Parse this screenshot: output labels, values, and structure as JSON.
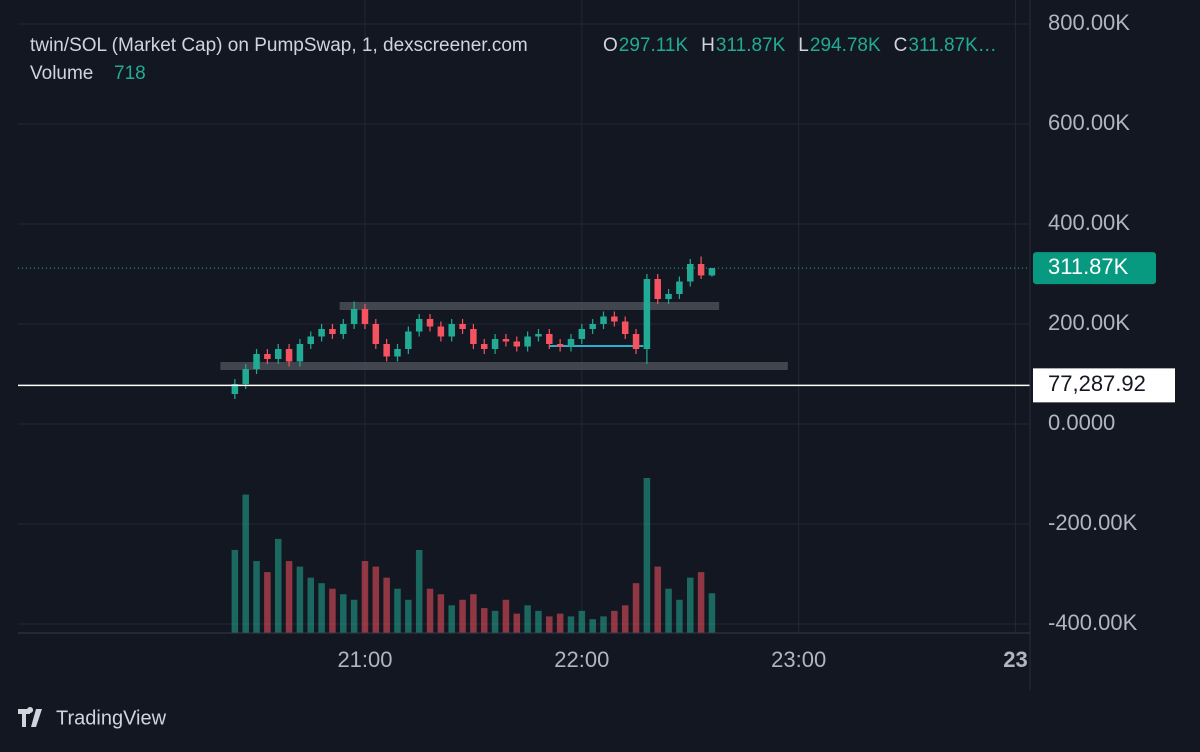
{
  "header": {
    "title": "twin/SOL (Market Cap) on PumpSwap, 1, dexscreener.com",
    "ohlc": [
      {
        "key": "O",
        "text": "297.11K"
      },
      {
        "key": "H",
        "text": "311.87K"
      },
      {
        "key": "L",
        "text": "294.78K"
      },
      {
        "key": "C",
        "text": "311.87K…"
      }
    ],
    "volume_label": "Volume"
  },
  "chart_data": {
    "type": "candlestick",
    "x": [
      "20:24",
      "20:27",
      "20:30",
      "20:33",
      "20:36",
      "20:39",
      "20:42",
      "20:45",
      "20:48",
      "20:51",
      "20:54",
      "20:57",
      "21:00",
      "21:03",
      "21:06",
      "21:09",
      "21:12",
      "21:15",
      "21:18",
      "21:21",
      "21:24",
      "21:27",
      "21:30",
      "21:33",
      "21:36",
      "21:39",
      "21:42",
      "21:45",
      "21:48",
      "21:51",
      "21:54",
      "21:57",
      "22:00",
      "22:03",
      "22:06",
      "22:09",
      "22:12",
      "22:15",
      "22:18",
      "22:21",
      "22:24",
      "22:27",
      "22:30",
      "22:33",
      "22:36"
    ],
    "open": [
      60000,
      80000,
      110000,
      140000,
      130000,
      150000,
      125000,
      160000,
      175000,
      190000,
      180000,
      200000,
      230000,
      200000,
      160000,
      135000,
      150000,
      185000,
      210000,
      195000,
      175000,
      200000,
      190000,
      160000,
      150000,
      170000,
      165000,
      155000,
      175000,
      180000,
      160000,
      155000,
      170000,
      190000,
      200000,
      215000,
      205000,
      180000,
      150000,
      290000,
      250000,
      260000,
      285000,
      320000,
      297110
    ],
    "high": [
      90000,
      120000,
      150000,
      150000,
      160000,
      160000,
      170000,
      185000,
      200000,
      200000,
      210000,
      245000,
      240000,
      210000,
      170000,
      160000,
      195000,
      220000,
      220000,
      205000,
      210000,
      210000,
      200000,
      170000,
      180000,
      180000,
      175000,
      185000,
      190000,
      190000,
      170000,
      180000,
      200000,
      210000,
      225000,
      225000,
      215000,
      190000,
      300000,
      300000,
      270000,
      295000,
      330000,
      335000,
      311870
    ],
    "low": [
      50000,
      70000,
      100000,
      120000,
      120000,
      115000,
      115000,
      150000,
      165000,
      170000,
      170000,
      190000,
      190000,
      150000,
      125000,
      125000,
      140000,
      175000,
      185000,
      165000,
      165000,
      180000,
      150000,
      140000,
      140000,
      155000,
      145000,
      145000,
      165000,
      150000,
      145000,
      145000,
      160000,
      180000,
      190000,
      195000,
      170000,
      140000,
      120000,
      240000,
      240000,
      250000,
      275000,
      290000,
      294780
    ],
    "close": [
      80000,
      110000,
      140000,
      130000,
      150000,
      125000,
      160000,
      175000,
      190000,
      180000,
      200000,
      230000,
      200000,
      160000,
      135000,
      150000,
      185000,
      210000,
      195000,
      175000,
      200000,
      190000,
      160000,
      150000,
      170000,
      165000,
      155000,
      175000,
      180000,
      160000,
      155000,
      170000,
      190000,
      200000,
      215000,
      205000,
      180000,
      150000,
      290000,
      250000,
      260000,
      285000,
      320000,
      297110,
      311870
    ],
    "volume": [
      1500,
      2500,
      1300,
      1100,
      1700,
      1300,
      1200,
      1000,
      900,
      800,
      700,
      600,
      1300,
      1200,
      1000,
      800,
      600,
      1500,
      800,
      700,
      500,
      600,
      700,
      450,
      400,
      600,
      350,
      500,
      400,
      300,
      350,
      300,
      400,
      250,
      300,
      400,
      500,
      900,
      2800,
      1200,
      800,
      600,
      1000,
      1100,
      718
    ],
    "up_color": "#22ab94",
    "down_color": "#f7525f",
    "xlim": [
      "19:24",
      "24:04"
    ],
    "xticks": [
      {
        "value": "21:00",
        "label": "21:00"
      },
      {
        "value": "22:00",
        "label": "22:00"
      },
      {
        "value": "23:00",
        "label": "23:00"
      },
      {
        "value": "24:00",
        "label": "23"
      }
    ],
    "ylim": [
      -418000,
      848000
    ],
    "yticks": [
      {
        "value": -400000,
        "label": "-400.00K"
      },
      {
        "value": -200000,
        "label": "-200.00K"
      },
      {
        "value": 0,
        "label": "0.0000"
      },
      {
        "value": 200000,
        "label": "200.00K"
      },
      {
        "value": 400000,
        "label": "400.00K"
      },
      {
        "value": 600000,
        "label": "600.00K"
      },
      {
        "value": 800000,
        "label": "800.00K"
      }
    ],
    "grid": true,
    "last_price": {
      "value": 311870,
      "label": "311.87K"
    },
    "crosshair": {
      "value": 77287.92,
      "label": "77,287.92"
    },
    "zones": [
      {
        "level": 236000,
        "start": "20:53",
        "end": "22:38"
      },
      {
        "level": 116000,
        "start": "20:20",
        "end": "22:57"
      }
    ],
    "trend_line": {
      "level": 156000,
      "start": "21:51",
      "end": "22:17",
      "color": "#2ab0c8"
    }
  },
  "footer": {
    "brand": "TradingView"
  }
}
